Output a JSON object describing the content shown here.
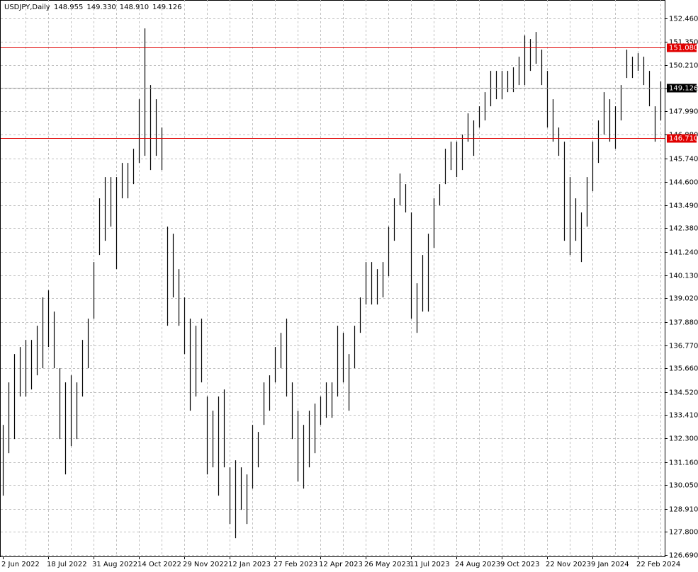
{
  "chart_data": {
    "type": "range",
    "symbol": "USDJPY,Daily",
    "header_values": [
      "148.955",
      "149.330",
      "148.910",
      "149.126"
    ],
    "categories": [
      "2 Jun 2022",
      null,
      null,
      null,
      null,
      null,
      null,
      null,
      "18 Jul 2022",
      null,
      null,
      null,
      null,
      null,
      null,
      null,
      "31 Aug 2022",
      null,
      null,
      null,
      null,
      null,
      null,
      null,
      "14 Oct 2022",
      null,
      null,
      null,
      null,
      null,
      null,
      null,
      "29 Nov 2022",
      null,
      null,
      null,
      null,
      null,
      null,
      null,
      "12 Jan 2023",
      null,
      null,
      null,
      null,
      null,
      null,
      null,
      "27 Feb 2023",
      null,
      null,
      null,
      null,
      null,
      null,
      null,
      "12 Apr 2023",
      null,
      null,
      null,
      null,
      null,
      null,
      null,
      "26 May 2023",
      null,
      null,
      null,
      null,
      null,
      null,
      null,
      "11 Jul 2023",
      null,
      null,
      null,
      null,
      null,
      null,
      null,
      "24 Aug 2023",
      null,
      null,
      null,
      null,
      null,
      null,
      null,
      "9 Oct 2023",
      null,
      null,
      null,
      null,
      null,
      null,
      null,
      "22 Nov 2023",
      null,
      null,
      null,
      null,
      null,
      null,
      null,
      "9 Jan 2024",
      null,
      null,
      null,
      null,
      null,
      null,
      null,
      "22 Feb 2024",
      null,
      null,
      null,
      null
    ],
    "high": [
      132.94,
      134.98,
      136.34,
      136.68,
      137.02,
      137.02,
      137.7,
      139.06,
      139.4,
      138.38,
      135.66,
      134.98,
      135.32,
      134.98,
      137.02,
      138.04,
      140.76,
      143.82,
      144.84,
      144.84,
      144.84,
      145.52,
      145.52,
      146.2,
      148.58,
      151.98,
      149.26,
      148.58,
      147.22,
      142.46,
      142.12,
      140.42,
      139.06,
      138.04,
      137.7,
      138.04,
      134.3,
      133.62,
      134.3,
      134.64,
      130.9,
      131.24,
      130.9,
      130.56,
      132.94,
      132.6,
      134.98,
      135.32,
      136.68,
      137.36,
      138.04,
      134.98,
      133.62,
      132.94,
      133.62,
      133.96,
      134.3,
      134.98,
      134.98,
      137.7,
      137.36,
      136.34,
      137.7,
      139.06,
      140.76,
      140.76,
      140.42,
      140.76,
      142.46,
      143.82,
      145.01,
      144.5,
      143.14,
      139.74,
      141.1,
      142.12,
      143.82,
      144.5,
      146.2,
      146.54,
      146.54,
      146.88,
      147.9,
      147.56,
      148.24,
      148.92,
      149.94,
      149.94,
      149.94,
      149.94,
      150.11,
      150.62,
      151.64,
      151.47,
      151.81,
      150.96,
      149.94,
      148.58,
      147.22,
      146.54,
      144.84,
      143.82,
      143.14,
      144.84,
      146.54,
      147.56,
      148.92,
      148.58,
      148.24,
      149.26,
      150.96,
      150.62,
      150.79,
      150.62,
      149.94,
      148.24,
      149.43
    ],
    "low": [
      129.54,
      131.58,
      132.26,
      134.3,
      134.3,
      134.64,
      135.32,
      135.66,
      136.68,
      135.66,
      132.26,
      130.56,
      131.92,
      132.26,
      134.3,
      135.66,
      138.04,
      141.1,
      141.78,
      142.46,
      140.42,
      143.82,
      143.82,
      144.5,
      145.52,
      145.86,
      145.18,
      145.86,
      145.18,
      137.7,
      139.06,
      137.7,
      136.34,
      133.62,
      134.3,
      134.98,
      130.56,
      130.9,
      129.54,
      130.9,
      128.18,
      127.5,
      128.86,
      128.18,
      129.88,
      130.9,
      132.94,
      133.62,
      134.98,
      135.66,
      134.3,
      132.26,
      130.22,
      129.88,
      130.9,
      131.58,
      132.94,
      133.28,
      133.28,
      134.3,
      134.98,
      133.62,
      135.66,
      137.36,
      138.72,
      138.72,
      138.72,
      139.06,
      140.08,
      141.78,
      143.48,
      143.14,
      138.04,
      137.36,
      138.38,
      138.38,
      141.44,
      143.48,
      144.5,
      145.18,
      144.84,
      145.18,
      146.54,
      145.86,
      147.22,
      147.56,
      148.24,
      148.58,
      148.58,
      148.92,
      148.92,
      149.26,
      149.26,
      149.94,
      150.28,
      149.26,
      147.22,
      146.54,
      145.86,
      141.78,
      141.1,
      141.78,
      140.76,
      142.46,
      144.16,
      145.52,
      146.88,
      146.54,
      146.2,
      147.56,
      149.6,
      149.6,
      149.94,
      149.26,
      148.24,
      146.54,
      147.56
    ],
    "color": "#000000",
    "ylim": [
      126.622,
      153.344
    ],
    "yticks": [
      {
        "value": 152.46,
        "label": "152.460"
      },
      {
        "value": 151.35,
        "label": "151.350"
      },
      {
        "value": 150.21,
        "label": "150.210"
      },
      {
        "value": 149.1,
        "label": "149.100"
      },
      {
        "value": 147.99,
        "label": "147.990"
      },
      {
        "value": 146.88,
        "label": "146.880"
      },
      {
        "value": 145.74,
        "label": "145.740"
      },
      {
        "value": 144.6,
        "label": "144.600"
      },
      {
        "value": 143.49,
        "label": "143.490"
      },
      {
        "value": 142.38,
        "label": "142.380"
      },
      {
        "value": 141.24,
        "label": "141.240"
      },
      {
        "value": 140.13,
        "label": "140.130"
      },
      {
        "value": 139.02,
        "label": "139.020"
      },
      {
        "value": 137.88,
        "label": "137.880"
      },
      {
        "value": 136.77,
        "label": "136.770"
      },
      {
        "value": 135.66,
        "label": "135.660"
      },
      {
        "value": 134.52,
        "label": "134.520"
      },
      {
        "value": 133.41,
        "label": "133.410"
      },
      {
        "value": 132.3,
        "label": "132.300"
      },
      {
        "value": 131.16,
        "label": "131.160"
      },
      {
        "value": 130.05,
        "label": "130.050"
      },
      {
        "value": 128.91,
        "label": "128.910"
      },
      {
        "value": 127.8,
        "label": "127.800"
      },
      {
        "value": 126.69,
        "label": "126.690"
      }
    ],
    "grid": true,
    "levels": [
      {
        "value": 151.08,
        "label": "151.080",
        "color": "#e00000"
      },
      {
        "value": 146.71,
        "label": "146.710",
        "color": "#e00000"
      },
      {
        "value": 149.126,
        "label": "149.126",
        "color": "#000000",
        "line_color": "#b0b0b0"
      }
    ]
  }
}
